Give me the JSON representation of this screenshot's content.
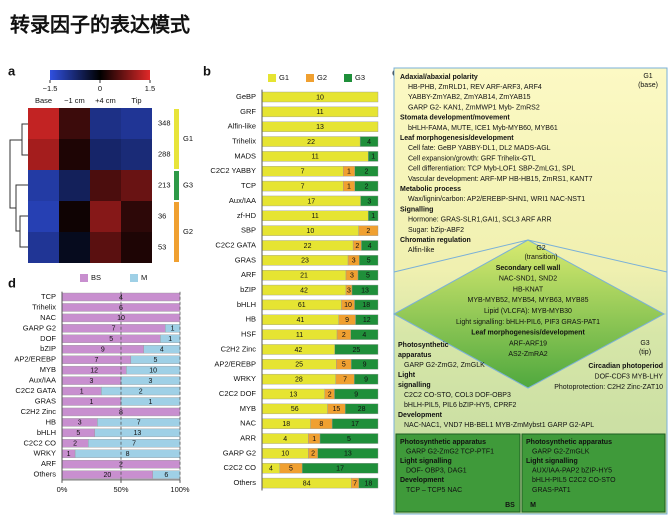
{
  "title": "转录因子的表达模式",
  "panel_labels": [
    "a",
    "b",
    "c",
    "d"
  ],
  "chart_data": [
    {
      "type": "heatmap",
      "columns": [
        "Base",
        "−1 cm",
        "+4 cm",
        "Tip"
      ],
      "rows": [
        "348",
        "288",
        "213",
        "36",
        "53"
      ],
      "values": [
        [
          1.3,
          0.4,
          -0.9,
          -1.0
        ],
        [
          1.1,
          0.2,
          -0.7,
          -0.8
        ],
        [
          -1.1,
          -0.6,
          0.5,
          0.7
        ],
        [
          -1.2,
          0.1,
          0.9,
          0.3
        ],
        [
          -1.0,
          -0.2,
          0.6,
          0.2
        ]
      ],
      "colorbar": {
        "lim": [
          -1.5,
          1.5
        ],
        "ticks": [
          {
            "value": -1.5,
            "label": "−1.5"
          },
          0,
          1.5
        ],
        "colors": [
          "#3050e0",
          "#000000",
          "#e02828"
        ]
      },
      "row_groups": [
        "G1",
        "G1",
        "G3",
        "G2",
        "G2"
      ],
      "group_colors": {
        "G1": "#e8e43a",
        "G3": "#2e9a48",
        "G2": "#f0a030"
      }
    },
    {
      "type": "bar",
      "stacking": "percent",
      "orientation": "horizontal",
      "categories": [
        "GeBP",
        "GRF",
        "Alfin-like",
        "Trihelix",
        "MADS",
        "C2C2 YABBY",
        "TCP",
        "Aux/IAA",
        "zf-HD",
        "SBP",
        "C2C2 GATA",
        "GRAS",
        "ARF",
        "bZIP",
        "bHLH",
        "HB",
        "HSF",
        "C2H2 Zinc",
        "AP2/EREBP",
        "WRKY",
        "C2C2 DOF",
        "MYB",
        "NAC",
        "ARR",
        "GARP G2",
        "C2C2 CO",
        "Others"
      ],
      "series": [
        {
          "name": "G1",
          "color": "#e6e432",
          "values": [
            10,
            11,
            13,
            22,
            11,
            7,
            7,
            17,
            11,
            10,
            22,
            23,
            21,
            42,
            61,
            41,
            11,
            42,
            25,
            28,
            13,
            56,
            18,
            4,
            10,
            4,
            84
          ]
        },
        {
          "name": "G2",
          "color": "#f0a030",
          "values": [
            0,
            0,
            0,
            0,
            0,
            1,
            1,
            0,
            0,
            2,
            2,
            3,
            3,
            3,
            10,
            9,
            2,
            0,
            5,
            7,
            2,
            15,
            8,
            1,
            2,
            5,
            7
          ]
        },
        {
          "name": "G3",
          "color": "#1f8f3a",
          "values": [
            0,
            0,
            0,
            4,
            1,
            2,
            2,
            3,
            1,
            0,
            4,
            5,
            5,
            13,
            18,
            12,
            4,
            25,
            9,
            9,
            9,
            28,
            17,
            5,
            13,
            17,
            18
          ]
        }
      ]
    },
    {
      "type": "bar",
      "stacking": "percent",
      "orientation": "horizontal",
      "categories": [
        "TCP",
        "Trihelix",
        "NAC",
        "GARP G2",
        "DOF",
        "bZIP",
        "AP2/EREBP",
        "MYB",
        "Aux/IAA",
        "C2C2 GATA",
        "GRAS",
        "C2H2 Zinc",
        "HB",
        "bHLH",
        "C2C2 CO",
        "WRKY",
        "ARF",
        "Others"
      ],
      "series": [
        {
          "name": "BS",
          "color": "#c88fcf",
          "values": [
            4,
            6,
            10,
            7,
            5,
            9,
            7,
            12,
            3,
            1,
            1,
            8,
            3,
            5,
            2,
            1,
            2,
            20
          ]
        },
        {
          "name": "M",
          "color": "#9fd0e6",
          "values": [
            0,
            0,
            0,
            1,
            1,
            4,
            5,
            10,
            3,
            2,
            1,
            0,
            7,
            13,
            7,
            8,
            0,
            6
          ]
        }
      ],
      "xlim": [
        0,
        100
      ],
      "xticks": [
        {
          "value": 0,
          "label": "0%"
        },
        {
          "value": 50,
          "label": "50%"
        },
        {
          "value": 100,
          "label": "100%"
        }
      ],
      "grid": true
    }
  ],
  "diagram": {
    "g1": {
      "label": "G1",
      "sub": "(base)",
      "groups": [
        {
          "heading": "Adaxial/abaxial polarity",
          "items": [
            "HB-PHB, ZmRLD1, REV     ARF-ARF3, ARF4",
            "YABBY-ZmYAB2, ZmYAB14, ZmYAB15",
            "GARP G2- KAN1, ZmMWP1   Myb- ZmRS2"
          ]
        },
        {
          "heading": "Stomata development/movement",
          "items": [
            "bHLH-FAMA, MUTE, ICE1   Myb-MYB60, MYB61"
          ]
        },
        {
          "heading": "Leaf morphogenesis/development",
          "items": [
            "Cell fate: GeBP   YABBY-DL1, DL2       MADS-AGL",
            "Cell expansion/growth: GRF   Trihelix-GTL",
            "Cell differentiation: TCP   Myb-LOF1  SBP-ZmLG1, SPL",
            "Vascular development: ARF-MP   HB-HB15, ZmRS1, KANT7"
          ]
        },
        {
          "heading": "Metabolic process",
          "items": [
            "Wax/lignin/carbon: AP2/EREBP-SHN1, WRI1  NAC-NST1"
          ]
        },
        {
          "heading": "Signalling",
          "items": [
            "Hormone: GRAS-SLR1,GAI1, SCL3    ARF    ARR",
            "Sugar: bZip-ABF2"
          ]
        },
        {
          "heading": "Chromatin regulation",
          "items": [
            "Alfin-like"
          ]
        }
      ]
    },
    "g2": {
      "label": "G2",
      "sub": "(transition)",
      "groups": [
        {
          "heading": "Secondary cell wall",
          "items": [
            "NAC-SND1, SND2",
            "HB-KNAT",
            "MYB-MYB52, MYB54, MYB63, MYB85"
          ]
        },
        {
          "items": [
            "Lipid (VLCFA): MYB-MYB30",
            "Light signalling: bHLH-PIL6, PIF3    GRAS-PAT1"
          ]
        },
        {
          "heading": "Leaf morphogenesis/development",
          "items": [
            "ARF-ARF19",
            "AS2-ZmRA2"
          ]
        }
      ]
    },
    "g3": {
      "label": "G3",
      "sub": "(tip)",
      "left": [
        {
          "heading": "Photosynthetic apparatus",
          "items": [
            "GARP G2-ZmG2, ZmGLK"
          ]
        },
        {
          "heading": "Light signalling",
          "items": [
            "C2C2 CO-STO, COL3 DOF-OBP3",
            "bHLH-PIL5, PIL6 bZIP-HY5, CPRF2"
          ]
        },
        {
          "heading": "Development",
          "items": [
            "NAC-NAC1, VND7  HB-BEL1  MYB-ZmMybst1   GARP G2-APL"
          ]
        }
      ],
      "right": [
        {
          "heading": "Circadian photoperiod",
          "items": [
            "DOF-CDF3 MYB-LHY"
          ]
        },
        {
          "items": [
            "Photoprotection: C2H2 Zinc-ZAT10"
          ]
        }
      ]
    },
    "bs": {
      "label": "BS",
      "groups": [
        {
          "heading": "Photosynthetic apparatus",
          "items": [
            "GARP G2-ZmG2 TCP-PTF1"
          ]
        },
        {
          "heading": "Light signalling",
          "items": [
            "DOF- OBP3, DAG1"
          ]
        },
        {
          "heading": "Development",
          "items": [
            "TCP – TCP5   NAC"
          ]
        }
      ]
    },
    "m": {
      "label": "M",
      "groups": [
        {
          "heading": "Photosynthetic apparatus",
          "items": [
            "GARP G2-ZmGLK"
          ]
        },
        {
          "heading": "Light signalling",
          "items": [
            "AUX/IAA-PAP2   bZIP-HY5",
            "bHLH-PIL5    C2C2 CO-STO",
            "GRAS-PAT1"
          ]
        }
      ]
    }
  }
}
